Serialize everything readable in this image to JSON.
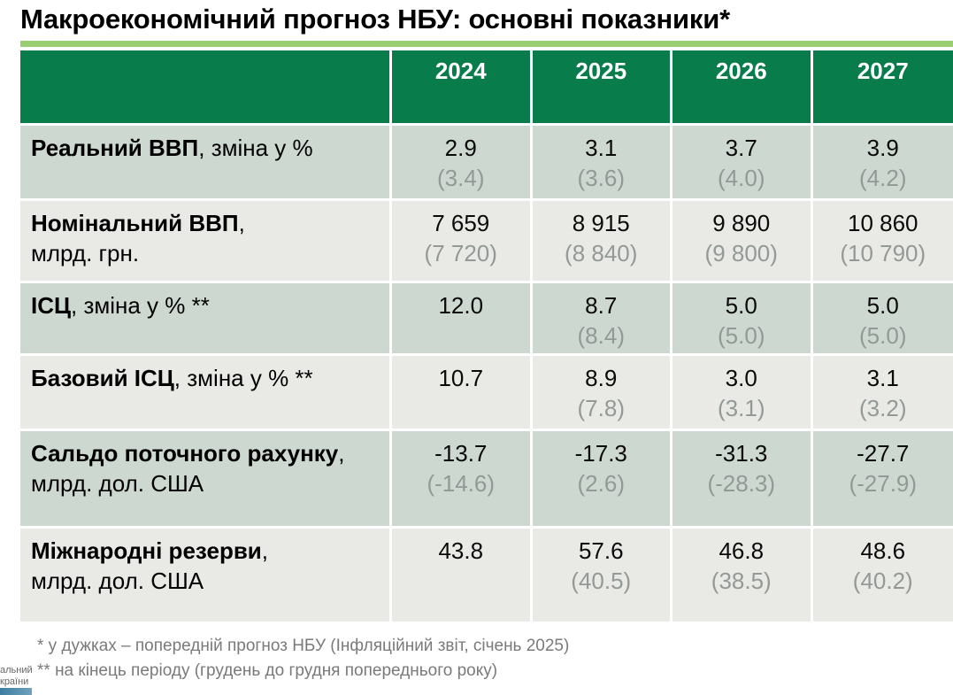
{
  "title": "Макроекономічний прогноз НБУ: основні показники*",
  "table": {
    "years": [
      "2024",
      "2025",
      "2026",
      "2027"
    ],
    "rows": [
      {
        "label_bold": "Реальний ВВП",
        "label_rest": ", зміна у %",
        "label_line2": "",
        "values": [
          "2.9",
          "3.1",
          "3.7",
          "3.9"
        ],
        "prev": [
          "(3.4)",
          "(3.6)",
          "(4.0)",
          "(4.2)"
        ]
      },
      {
        "label_bold": "Номінальний ВВП",
        "label_rest": ",",
        "label_line2": "млрд. грн.",
        "values": [
          "7 659",
          "8 915",
          "9 890",
          "10 860"
        ],
        "prev": [
          "(7 720)",
          "(8 840)",
          "(9 800)",
          "(10 790)"
        ]
      },
      {
        "label_bold": "ІСЦ",
        "label_rest": ", зміна у % **",
        "label_line2": "",
        "values": [
          "12.0",
          "8.7",
          "5.0",
          "5.0"
        ],
        "prev": [
          "",
          "(8.4)",
          "(5.0)",
          "(5.0)"
        ]
      },
      {
        "label_bold": "Базовий ІСЦ",
        "label_rest": ", зміна у % **",
        "label_line2": "",
        "values": [
          "10.7",
          "8.9",
          "3.0",
          "3.1"
        ],
        "prev": [
          "",
          "(7.8)",
          "(3.1)",
          "(3.2)"
        ]
      },
      {
        "label_bold": "Сальдо поточного рахунку",
        "label_rest": ",",
        "label_line2": "млрд. дол. США",
        "values": [
          "-13.7",
          "-17.3",
          "-31.3",
          "-27.7"
        ],
        "prev": [
          "(-14.6)",
          "(2.6)",
          "(-28.3)",
          "(-27.9)"
        ]
      },
      {
        "label_bold": "Міжнародні резерви",
        "label_rest": ",",
        "label_line2": "млрд. дол. США",
        "values": [
          "43.8",
          "57.6",
          "46.8",
          "48.6"
        ],
        "prev": [
          "",
          "(40.5)",
          "(38.5)",
          "(40.2)"
        ]
      }
    ]
  },
  "footnotes": [
    "* у дужках – попередній прогноз НБУ (Інфляційний звіт, січень 2025)",
    "** на кінець періоду (грудень до грудня попереднього року)"
  ],
  "logo_fragment": {
    "line1": "альний",
    "line2": "країни"
  },
  "colors": {
    "header_green": "#087C4B",
    "title_bar_green": "#9BCE73",
    "row_shaded": "#CDD8D0",
    "row_light": "#E9EAE5",
    "prev_value_gray": "#939997",
    "footnote_gray": "#7A7A7A"
  }
}
